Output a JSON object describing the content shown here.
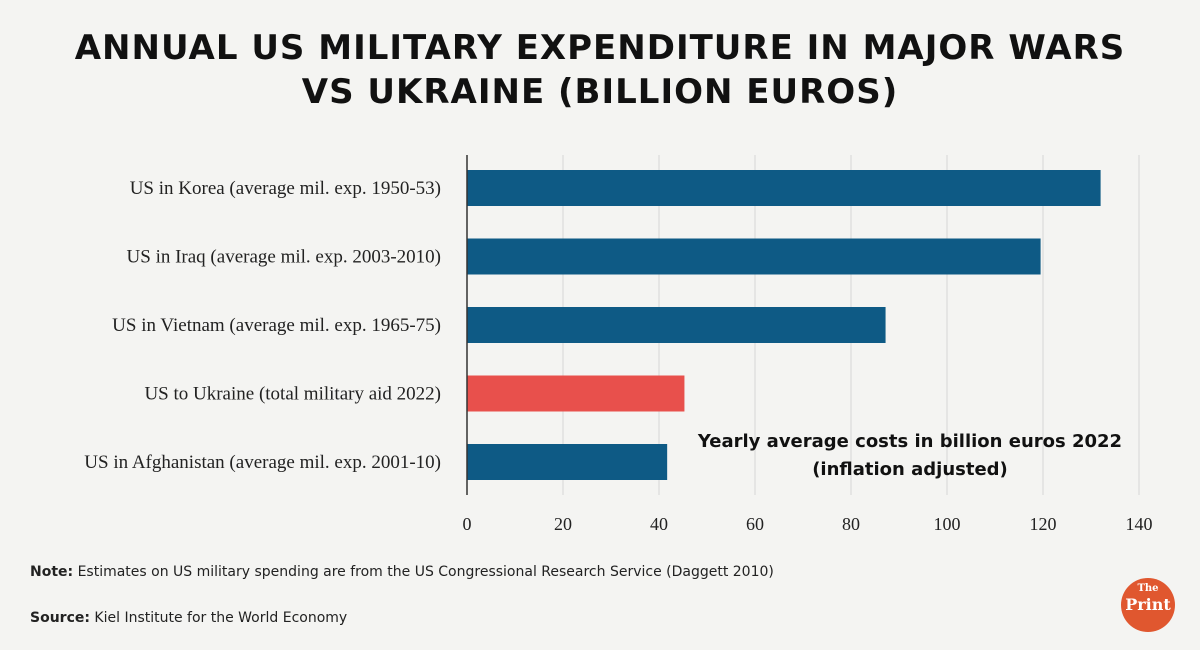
{
  "title_line1": "ANNUAL US MILITARY EXPENDITURE IN MAJOR WARS",
  "title_line2": "VS UKRAINE (BILLION EUROS)",
  "annotation_line1": "Yearly average costs in billion euros 2022",
  "annotation_line2": "(inflation adjusted)",
  "note_label": "Note:",
  "note_text": " Estimates on US military spending are from the US Congressional Research Service (Daggett 2010)",
  "source_label": "Source:",
  "source_text": " Kiel Institute for the World Economy",
  "logo_top": "The",
  "logo_bottom": "Print",
  "colors": {
    "bar": "#0e5a85",
    "highlight": "#e8504c",
    "logo": "#e0572f"
  },
  "chart_data": {
    "type": "bar",
    "orientation": "horizontal",
    "categories": [
      "US in Korea (average mil. exp. 1950-53)",
      "US in Iraq (average mil. exp. 2003-2010)",
      "US in Vietnam (average mil. exp. 1965-75)",
      "US to Ukraine (total military aid 2022)",
      "US in Afghanistan (average mil. exp. 2001-10)"
    ],
    "values": [
      132,
      119.5,
      87.2,
      45.3,
      41.7
    ],
    "highlight_index": 3,
    "xlim": [
      0,
      140
    ],
    "xticks": [
      0,
      20,
      40,
      60,
      80,
      100,
      120,
      140
    ],
    "grid": "vertical"
  }
}
